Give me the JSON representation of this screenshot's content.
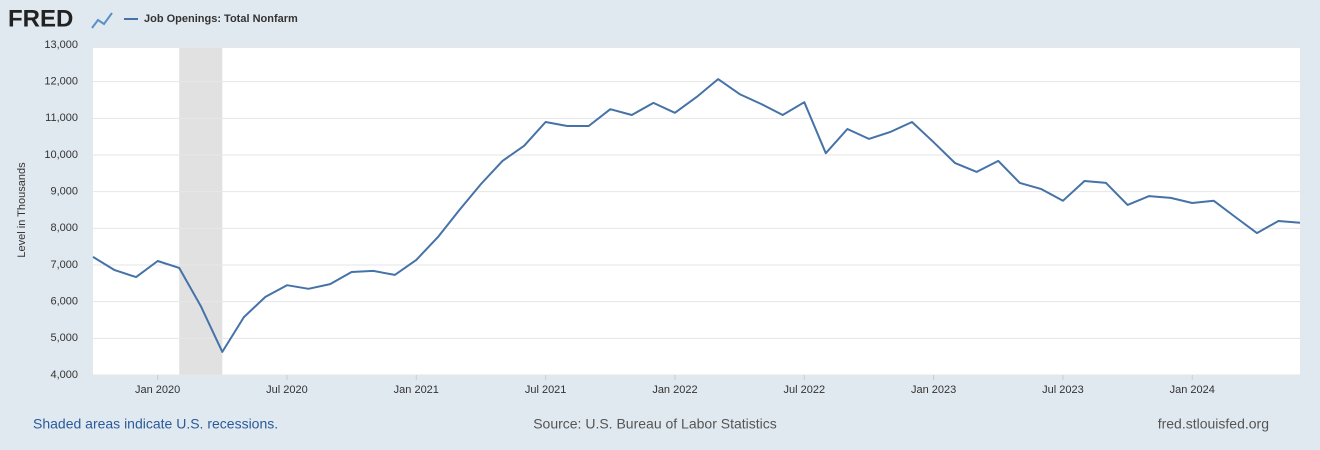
{
  "logo": "FRED",
  "chart_data": {
    "type": "line",
    "y_label": "Level in Thousands",
    "x": [
      "2019-10",
      "2019-11",
      "2019-12",
      "2020-01",
      "2020-02",
      "2020-03",
      "2020-04",
      "2020-05",
      "2020-06",
      "2020-07",
      "2020-08",
      "2020-09",
      "2020-10",
      "2020-11",
      "2020-12",
      "2021-01",
      "2021-02",
      "2021-03",
      "2021-04",
      "2021-05",
      "2021-06",
      "2021-07",
      "2021-08",
      "2021-09",
      "2021-10",
      "2021-11",
      "2021-12",
      "2022-01",
      "2022-02",
      "2022-03",
      "2022-04",
      "2022-05",
      "2022-06",
      "2022-07",
      "2022-08",
      "2022-09",
      "2022-10",
      "2022-11",
      "2022-12",
      "2023-01",
      "2023-02",
      "2023-03",
      "2023-04",
      "2023-05",
      "2023-06",
      "2023-07",
      "2023-08",
      "2023-09",
      "2023-10",
      "2023-11",
      "2023-12",
      "2024-01",
      "2024-02",
      "2024-03",
      "2024-04",
      "2024-05",
      "2024-06"
    ],
    "series": [
      {
        "name": "Job Openings: Total Nonfarm",
        "color": "#4572a7",
        "values": [
          7220,
          6860,
          6670,
          7110,
          6920,
          5880,
          4630,
          5580,
          6130,
          6450,
          6350,
          6480,
          6810,
          6840,
          6730,
          7140,
          7760,
          8500,
          9210,
          9840,
          10250,
          10900,
          10790,
          10790,
          11250,
          11090,
          11420,
          11150,
          11580,
          12070,
          11660,
          11390,
          11090,
          11440,
          10050,
          10710,
          10440,
          10630,
          10900,
          10350,
          9780,
          9540,
          9840,
          9240,
          9070,
          8750,
          9290,
          9240,
          8640,
          8880,
          8830,
          8690,
          8750,
          8310,
          7870,
          8200,
          8150
        ]
      }
    ],
    "xlim": [
      "2019-10",
      "2024-06"
    ],
    "xticks": [
      {
        "value": "2020-01",
        "label": "Jan 2020"
      },
      {
        "value": "2020-07",
        "label": "Jul 2020"
      },
      {
        "value": "2021-01",
        "label": "Jan 2021"
      },
      {
        "value": "2021-07",
        "label": "Jul 2021"
      },
      {
        "value": "2022-01",
        "label": "Jan 2022"
      },
      {
        "value": "2022-07",
        "label": "Jul 2022"
      },
      {
        "value": "2023-01",
        "label": "Jan 2023"
      },
      {
        "value": "2023-07",
        "label": "Jul 2023"
      },
      {
        "value": "2024-01",
        "label": "Jan 2024"
      }
    ],
    "ylim": [
      4000,
      13000
    ],
    "yticks": [
      {
        "value": 4000,
        "label": "4,000"
      },
      {
        "value": 5000,
        "label": "5,000"
      },
      {
        "value": 6000,
        "label": "6,000"
      },
      {
        "value": 7000,
        "label": "7,000"
      },
      {
        "value": 8000,
        "label": "8,000"
      },
      {
        "value": 9000,
        "label": "9,000"
      },
      {
        "value": 10000,
        "label": "10,000"
      },
      {
        "value": 11000,
        "label": "11,000"
      },
      {
        "value": 12000,
        "label": "12,000"
      },
      {
        "value": 13000,
        "label": "13,000"
      }
    ],
    "grid": true,
    "recessions": [
      {
        "start": "2020-02",
        "end": "2020-04"
      }
    ],
    "note": "Shaded areas indicate U.S. recessions.",
    "source": "Source: U.S. Bureau of Labor Statistics",
    "website": "fred.stlouisfed.org"
  }
}
